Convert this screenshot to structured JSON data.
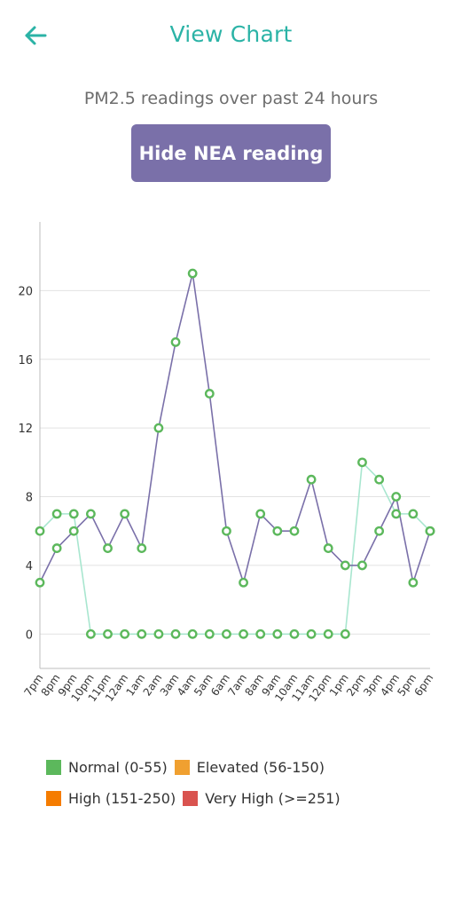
{
  "header": {
    "title": "View Chart",
    "back_icon": "arrow-left-icon",
    "accent_color": "#2bb3a6"
  },
  "subtitle": "PM2.5 readings over past 24 hours",
  "toggle_button": {
    "label": "Hide NEA reading",
    "color": "#7a70a9"
  },
  "chart_data": {
    "type": "line",
    "categories": [
      "7pm",
      "8pm",
      "9pm",
      "10pm",
      "11pm",
      "12am",
      "1am",
      "2am",
      "3am",
      "4am",
      "5am",
      "6am",
      "7am",
      "8am",
      "9am",
      "10am",
      "11am",
      "12pm",
      "1pm",
      "2pm",
      "3pm",
      "4pm",
      "5pm",
      "6pm"
    ],
    "ylim": [
      -2,
      24
    ],
    "yticks": [
      0,
      4,
      8,
      12,
      16,
      20
    ],
    "grid": true,
    "series": [
      {
        "color": "#7a70a9",
        "values": [
          3,
          5,
          6,
          7,
          5,
          7,
          5,
          12,
          17,
          21,
          14,
          6,
          3,
          7,
          6,
          6,
          9,
          5,
          4,
          4,
          6,
          8,
          3,
          6
        ]
      },
      {
        "color": "#a8e6cf",
        "values": [
          6,
          7,
          7,
          0,
          0,
          0,
          0,
          0,
          0,
          0,
          0,
          0,
          0,
          0,
          0,
          0,
          0,
          0,
          0,
          10,
          9,
          7,
          7,
          6
        ]
      }
    ],
    "marker_color": "#5cb85c",
    "xlabel": "",
    "ylabel": "",
    "title": ""
  },
  "legend": {
    "items": [
      {
        "label": "Normal (0-55)",
        "color": "#5cb85c"
      },
      {
        "label": "Elevated (56-150)",
        "color": "#f0a030"
      },
      {
        "label": "High (151-250)",
        "color": "#f57c00"
      },
      {
        "label": "Very High (>=251)",
        "color": "#d9534f"
      }
    ]
  }
}
